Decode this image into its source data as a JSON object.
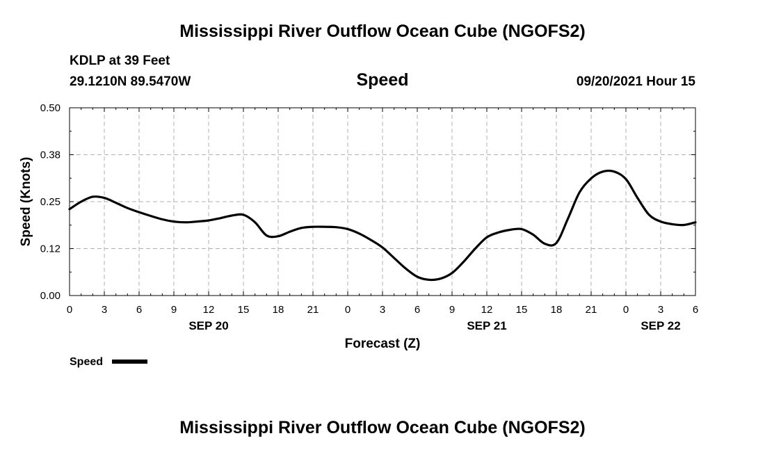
{
  "page": {
    "title_top": "Mississippi River Outflow Ocean Cube (NGOFS2)",
    "title_bottom": "Mississippi River Outflow Ocean Cube (NGOFS2)",
    "station": "KDLP at 39 Feet",
    "location": "29.1210N  89.5470W",
    "panel_title": "Speed",
    "valid_time": "09/20/2021 Hour 15"
  },
  "chart_data": {
    "type": "line",
    "title": "Speed",
    "xlabel": "Forecast (Z)",
    "ylabel": "Speed (Knots)",
    "xlim": [
      0,
      54
    ],
    "ylim": [
      0,
      0.5
    ],
    "x_tick_values": [
      0,
      3,
      6,
      9,
      12,
      15,
      18,
      21,
      24,
      27,
      30,
      33,
      36,
      39,
      42,
      45,
      48,
      51,
      54
    ],
    "x_tick_labels": [
      "0",
      "3",
      "6",
      "9",
      "12",
      "15",
      "18",
      "21",
      "0",
      "3",
      "6",
      "9",
      "12",
      "15",
      "18",
      "21",
      "0",
      "3",
      "6"
    ],
    "date_labels": [
      {
        "x": 12,
        "label": "SEP 20"
      },
      {
        "x": 36,
        "label": "SEP 21"
      },
      {
        "x": 51,
        "label": "SEP 22"
      }
    ],
    "y_tick_values": [
      0,
      0.125,
      0.25,
      0.375,
      0.5
    ],
    "y_tick_labels": [
      "0.00",
      "0.12",
      "0.25",
      "0.38",
      "0.50"
    ],
    "grid": true,
    "legend": "bottom-left",
    "series": [
      {
        "name": "Speed",
        "color": "#000000",
        "x": [
          0,
          1,
          2,
          3,
          4,
          5,
          6,
          7,
          8,
          9,
          10,
          11,
          12,
          13,
          14,
          15,
          16,
          17,
          18,
          19,
          20,
          21,
          22,
          23,
          24,
          25,
          26,
          27,
          28,
          29,
          30,
          31,
          32,
          33,
          34,
          35,
          36,
          37,
          38,
          39,
          40,
          41,
          42,
          43,
          44,
          45,
          46,
          47,
          48,
          49,
          50,
          51,
          52,
          53,
          54
        ],
        "values": [
          0.23,
          0.25,
          0.263,
          0.26,
          0.247,
          0.233,
          0.222,
          0.212,
          0.203,
          0.197,
          0.195,
          0.197,
          0.2,
          0.206,
          0.213,
          0.215,
          0.195,
          0.16,
          0.158,
          0.17,
          0.18,
          0.183,
          0.183,
          0.182,
          0.177,
          0.165,
          0.148,
          0.128,
          0.1,
          0.072,
          0.05,
          0.042,
          0.045,
          0.06,
          0.09,
          0.125,
          0.155,
          0.168,
          0.175,
          0.177,
          0.162,
          0.138,
          0.14,
          0.205,
          0.275,
          0.312,
          0.33,
          0.33,
          0.31,
          0.26,
          0.215,
          0.197,
          0.19,
          0.188,
          0.195
        ]
      }
    ]
  }
}
